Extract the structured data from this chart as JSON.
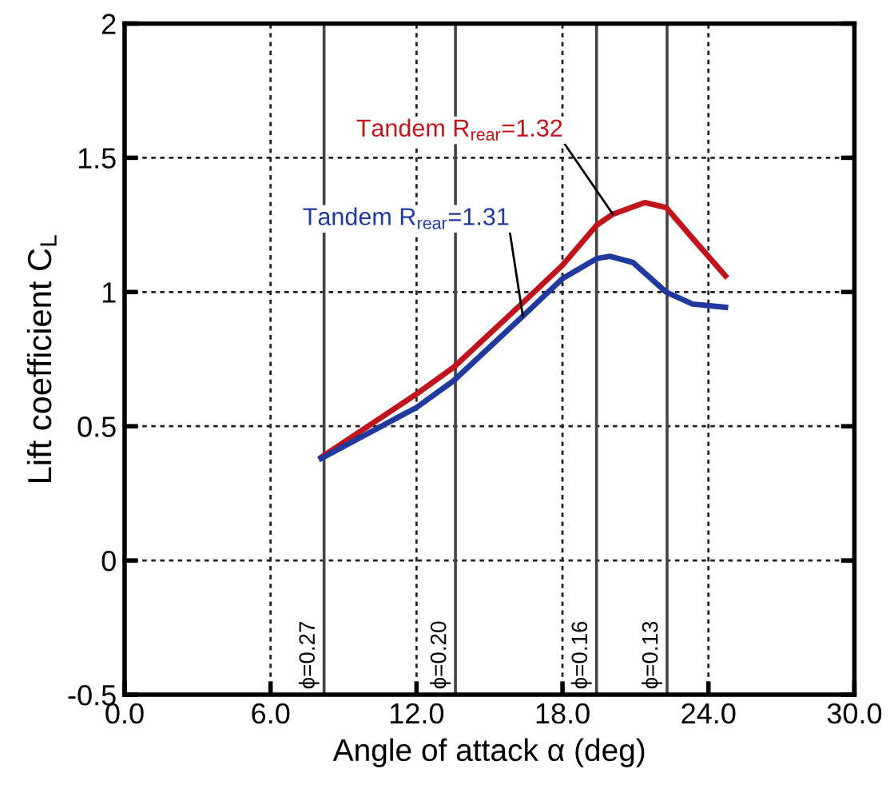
{
  "chart_data": {
    "type": "line",
    "xlabel": "Angle of attack α (deg)",
    "ylabel": "Lift coefficient C$_{L}$",
    "xlim": [
      0,
      30
    ],
    "ylim": [
      -0.5,
      2
    ],
    "xticks": [
      {
        "value": 0,
        "label": "0.0"
      },
      {
        "value": 6,
        "label": "6.0"
      },
      {
        "value": 12,
        "label": "12.0"
      },
      {
        "value": 18,
        "label": "18.0"
      },
      {
        "value": 24,
        "label": "24.0"
      },
      {
        "value": 30,
        "label": "30.0"
      }
    ],
    "yticks": [
      {
        "value": -0.5,
        "label": "-0.5"
      },
      0,
      0.5,
      1,
      1.5,
      2
    ],
    "grid": true,
    "line_style": "solid",
    "marker": "none",
    "legend": false,
    "series": [
      {
        "name": "Tandem R$_{rear}$=1.32",
        "color": "#c0141c",
        "x": [
          8.08,
          12.0,
          13.53,
          16.37,
          18.0,
          19.42,
          20.07,
          21.38,
          22.26,
          23.35,
          24.7
        ],
        "values": [
          0.384,
          0.62,
          0.72,
          0.96,
          1.1,
          1.25,
          1.29,
          1.333,
          1.315,
          1.2,
          1.06
        ]
      },
      {
        "name": "Tandem R$_{rear}$=1.31",
        "color": "#1f3a9c",
        "x": [
          8.08,
          12.0,
          13.53,
          16.37,
          18.0,
          19.42,
          19.95,
          20.9,
          22.26,
          23.35,
          24.7
        ],
        "values": [
          0.38,
          0.57,
          0.67,
          0.91,
          1.05,
          1.125,
          1.133,
          1.11,
          1.0,
          0.955,
          0.943
        ]
      }
    ],
    "annotations": [
      {
        "text": "ϕ=0.27",
        "x": 8.2,
        "y": -0.5
      },
      {
        "text": "ϕ=0.20",
        "x": 13.6,
        "y": -0.5
      },
      {
        "text": "ϕ=0.16",
        "x": 19.4,
        "y": -0.5
      },
      {
        "text": "ϕ=0.13",
        "x": 22.3,
        "y": -0.5
      }
    ],
    "ref_lines": [
      {
        "axis": "x",
        "value": 8.2,
        "color": "#444444"
      },
      {
        "axis": "x",
        "value": 13.6,
        "color": "#444444"
      },
      {
        "axis": "x",
        "value": 19.4,
        "color": "#444444"
      },
      {
        "axis": "x",
        "value": 22.3,
        "color": "#444444"
      }
    ]
  }
}
